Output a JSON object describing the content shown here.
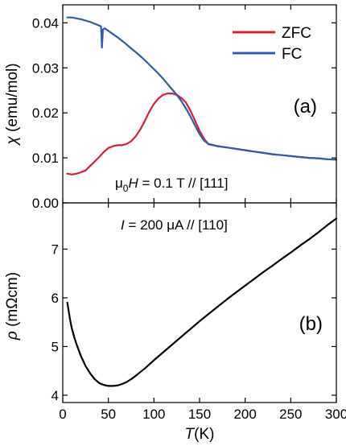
{
  "chart_data": [
    {
      "type": "line",
      "panel_label": "(a)",
      "ylabel_symbol": "χ",
      "ylabel_unit": " (emu/mol)",
      "annotation": {
        "mu": "μ",
        "sub": "0",
        "H": "H",
        "rest": " = 0.1 T // [111]"
      },
      "xlim": [
        0,
        300
      ],
      "ylim": [
        0.0,
        0.044
      ],
      "yticks": [
        0.0,
        0.01,
        0.02,
        0.03,
        0.04
      ],
      "ytick_labels": [
        "0.00",
        "0.01",
        "0.02",
        "0.03",
        "0.04"
      ],
      "legend_position": "top-right",
      "series": [
        {
          "name": "ZFC",
          "color": "#d62030",
          "x": [
            5,
            10,
            15,
            20,
            25,
            30,
            35,
            40,
            45,
            50,
            55,
            60,
            65,
            70,
            75,
            80,
            85,
            90,
            95,
            100,
            105,
            110,
            115,
            120,
            125,
            130,
            135,
            140,
            145,
            150,
            155,
            160,
            170,
            180,
            190,
            200,
            210,
            220,
            230,
            240,
            250,
            260,
            270,
            280,
            290,
            300
          ],
          "y": [
            0.0065,
            0.0063,
            0.0065,
            0.0068,
            0.0072,
            0.0082,
            0.0092,
            0.0102,
            0.0113,
            0.0122,
            0.0126,
            0.0128,
            0.0128,
            0.0131,
            0.0137,
            0.0148,
            0.0163,
            0.0182,
            0.0203,
            0.022,
            0.0232,
            0.024,
            0.0243,
            0.0243,
            0.024,
            0.0233,
            0.0223,
            0.0205,
            0.0183,
            0.016,
            0.0142,
            0.013,
            0.0126,
            0.0123,
            0.012,
            0.0117,
            0.0114,
            0.0111,
            0.0108,
            0.0106,
            0.0104,
            0.0102,
            0.01,
            0.0099,
            0.0097,
            0.0096
          ]
        },
        {
          "name": "FC",
          "color": "#2e5db0",
          "x": [
            5,
            10,
            15,
            20,
            25,
            30,
            35,
            40,
            42,
            43,
            44,
            46,
            50,
            55,
            60,
            65,
            70,
            75,
            80,
            85,
            90,
            95,
            100,
            105,
            110,
            115,
            120,
            125,
            130,
            135,
            140,
            145,
            150,
            155,
            160,
            170,
            180,
            190,
            200,
            210,
            220,
            230,
            240,
            250,
            260,
            270,
            280,
            290,
            300
          ],
          "y": [
            0.0412,
            0.0412,
            0.041,
            0.0408,
            0.0405,
            0.0402,
            0.0398,
            0.0394,
            0.0392,
            0.0345,
            0.0385,
            0.0388,
            0.0382,
            0.0375,
            0.0368,
            0.036,
            0.0352,
            0.0343,
            0.0335,
            0.0326,
            0.0317,
            0.0307,
            0.0297,
            0.0287,
            0.0276,
            0.0264,
            0.0252,
            0.024,
            0.0226,
            0.021,
            0.0192,
            0.0172,
            0.0153,
            0.0138,
            0.0131,
            0.0126,
            0.0123,
            0.012,
            0.0117,
            0.0114,
            0.0111,
            0.0108,
            0.0106,
            0.0104,
            0.0102,
            0.01,
            0.0099,
            0.0097,
            0.0096
          ]
        }
      ]
    },
    {
      "type": "line",
      "panel_label": "(b)",
      "ylabel_symbol": "ρ",
      "ylabel_unit": " (mΩcm)",
      "annotation": {
        "I": "I",
        "rest": " = 200 μA  // [110]"
      },
      "xlim": [
        0,
        300
      ],
      "ylim": [
        3.85,
        7.95
      ],
      "yticks": [
        4,
        5,
        6,
        7
      ],
      "ytick_labels": [
        "4",
        "5",
        "6",
        "7"
      ],
      "xticks": [
        0,
        50,
        100,
        150,
        200,
        250,
        300
      ],
      "xtick_labels": [
        "0",
        "50",
        "100",
        "150",
        "200",
        "250",
        "300"
      ],
      "xlabel_symbol": "T",
      "xlabel_unit": "(K)",
      "series": [
        {
          "name": "",
          "color": "#000000",
          "x": [
            5,
            8,
            10,
            13,
            15,
            18,
            20,
            25,
            30,
            35,
            40,
            45,
            50,
            55,
            60,
            65,
            70,
            75,
            80,
            90,
            100,
            110,
            120,
            130,
            140,
            150,
            160,
            170,
            180,
            190,
            200,
            210,
            220,
            230,
            240,
            250,
            260,
            270,
            280,
            290,
            300
          ],
          "y": [
            5.9,
            5.55,
            5.37,
            5.17,
            5.05,
            4.9,
            4.8,
            4.6,
            4.45,
            4.33,
            4.25,
            4.21,
            4.19,
            4.19,
            4.2,
            4.23,
            4.27,
            4.33,
            4.4,
            4.55,
            4.72,
            4.88,
            5.04,
            5.2,
            5.36,
            5.52,
            5.67,
            5.82,
            5.97,
            6.11,
            6.25,
            6.39,
            6.53,
            6.66,
            6.8,
            6.93,
            7.07,
            7.2,
            7.34,
            7.49,
            7.63
          ]
        }
      ]
    }
  ]
}
